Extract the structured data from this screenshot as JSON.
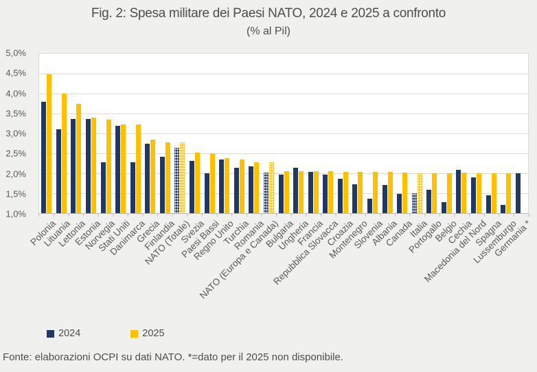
{
  "footer": {
    "source": "Fonte: elaborazioni OCPI su dati NATO. *=dato per il 2025 non disponibile."
  },
  "colors": {
    "background": "#F0F0EF",
    "plot_background": "#FFFFFF",
    "gridline": "#D9D9D9",
    "axis": "#BFBFBF",
    "text": "#595959",
    "navy_2024": "#1F3864",
    "gold_2025": "#FFC000"
  },
  "chart_data": {
    "type": "bar",
    "title": "Fig. 2: Spesa militare dei Paesi NATO, 2024 e 2025 a confronto",
    "subtitle": "(% al Pil)",
    "xlabel": "",
    "ylabel": "",
    "ylim": [
      1.0,
      5.0
    ],
    "ytick_step": 0.5,
    "ytick_labels": [
      "1,0%",
      "1,5%",
      "2,0%",
      "2,5%",
      "3,0%",
      "3,5%",
      "4,0%",
      "4,5%",
      "5,0%"
    ],
    "grid": true,
    "legend_position": "bottom-left",
    "categories": [
      "Polonia",
      "Lituania",
      "Lettonia",
      "Estonia",
      "Norvegia",
      "Stati Uniti",
      "Danimarca",
      "Grecia",
      "Finlandia",
      "NATO (Totale)",
      "Svezia",
      "Paesi Bassi",
      "Regno Unito",
      "Turchia",
      "Romania",
      "NATO (Europa e Canada)",
      "Bulgaria",
      "Ungheria",
      "Francia",
      "Repubblica Slovacca",
      "Croazia",
      "Montenegro",
      "Slovenia",
      "Albania",
      "Canada",
      "Italia",
      "Portogallo",
      "Belgio",
      "Cechia",
      "Macedonia del Nord",
      "Spagna",
      "Lussemburgo",
      "Germania *"
    ],
    "series": [
      {
        "name": "2024",
        "color": "#1F3864",
        "values": [
          3.8,
          3.1,
          3.37,
          3.37,
          2.27,
          3.19,
          2.27,
          2.75,
          2.41,
          2.63,
          2.31,
          2.0,
          2.34,
          2.13,
          2.17,
          2.01,
          1.96,
          2.13,
          2.03,
          1.96,
          1.86,
          1.72,
          1.37,
          1.71,
          1.49,
          1.5,
          1.58,
          1.28,
          2.08,
          1.9,
          1.44,
          1.2,
          2.0
        ]
      },
      {
        "name": "2025",
        "color": "#FFC000",
        "values": [
          4.48,
          4.0,
          3.74,
          3.39,
          3.35,
          3.22,
          3.22,
          2.85,
          2.78,
          2.78,
          2.52,
          2.5,
          2.38,
          2.34,
          2.28,
          2.27,
          2.06,
          2.06,
          2.05,
          2.05,
          2.04,
          2.03,
          2.03,
          2.03,
          2.01,
          2.0,
          2.0,
          2.0,
          2.02,
          2.0,
          2.0,
          2.0,
          null
        ]
      }
    ],
    "hatched_categories": [
      "NATO (Totale)",
      "NATO (Europa e Canada)",
      "Italia"
    ]
  }
}
